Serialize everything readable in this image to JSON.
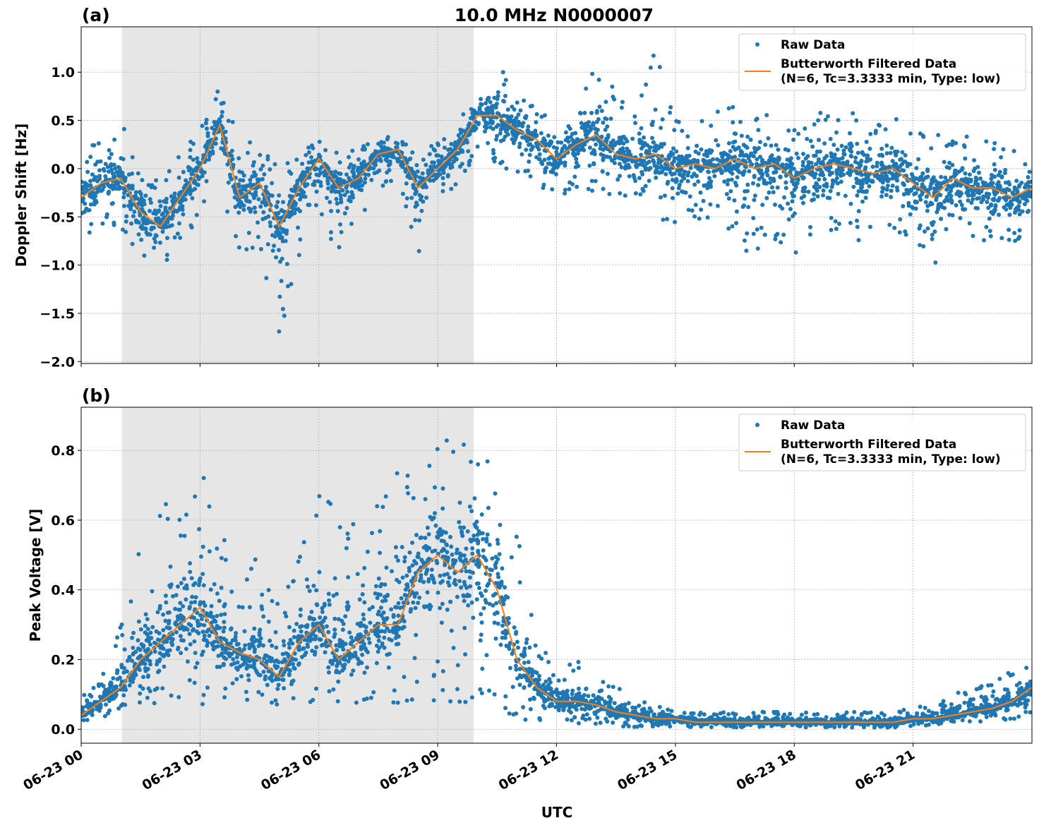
{
  "figure_title": "10.0 MHz N0000007",
  "xlabel": "UTC",
  "x_tick_labels": [
    "06-23 00",
    "06-23 03",
    "06-23 06",
    "06-23 09",
    "06-23 12",
    "06-23 15",
    "06-23 18",
    "06-23 21"
  ],
  "x_ticks_hours": [
    0,
    3,
    6,
    9,
    12,
    15,
    18,
    21
  ],
  "xlim_hours": [
    0,
    24
  ],
  "shaded_interval_hours": [
    1.03,
    9.91
  ],
  "colors": {
    "raw": "#1f77b4",
    "filtered": "#ff7f0e",
    "shade": "#e6e6e6",
    "grid": "#b0b0b0"
  },
  "legend": {
    "raw": "Raw Data",
    "filtered_line1": "Butterworth Filtered Data",
    "filtered_line2": "(N=6, Tc=3.3333 min, Type: low)",
    "placement": "upper-right"
  },
  "chart_data": [
    {
      "panel_label": "(a)",
      "type": "scatter+line",
      "ylabel": "Doppler Shift [Hz]",
      "ylim": [
        -2.02,
        1.47
      ],
      "y_ticks": [
        -2.0,
        -1.5,
        -1.0,
        -0.5,
        0.0,
        0.5,
        1.0
      ],
      "y_tick_labels": [
        "−2.0",
        "−1.5",
        "−1.0",
        "−0.5",
        "0.0",
        "0.5",
        "1.0"
      ],
      "grid": true,
      "x_hours": [
        0,
        0.5,
        1,
        1.5,
        2,
        2.5,
        3,
        3.5,
        4,
        4.5,
        5,
        5.5,
        6,
        6.5,
        7,
        7.5,
        8,
        8.5,
        9,
        9.5,
        10,
        10.5,
        11,
        11.5,
        12,
        12.5,
        13,
        13.5,
        14,
        14.5,
        15,
        15.5,
        16,
        16.5,
        17,
        17.5,
        18,
        18.5,
        19,
        19.5,
        20,
        20.5,
        21,
        21.5,
        22,
        22.5,
        23,
        23.5,
        24
      ],
      "filtered": [
        -0.3,
        -0.15,
        -0.1,
        -0.45,
        -0.6,
        -0.3,
        0.0,
        0.45,
        -0.3,
        -0.15,
        -0.6,
        -0.2,
        0.1,
        -0.2,
        -0.1,
        0.15,
        0.2,
        -0.2,
        0.0,
        0.2,
        0.55,
        0.55,
        0.4,
        0.3,
        0.1,
        0.25,
        0.35,
        0.15,
        0.1,
        0.15,
        0.0,
        0.05,
        0.0,
        0.1,
        0.0,
        0.05,
        -0.1,
        0.0,
        0.05,
        0.0,
        -0.05,
        0.0,
        -0.15,
        -0.3,
        -0.1,
        -0.2,
        -0.2,
        -0.3,
        -0.2
      ],
      "raw_high": [
        0.2,
        0.3,
        0.5,
        0.0,
        -0.1,
        0.2,
        0.4,
        0.85,
        0.3,
        0.3,
        0.1,
        0.2,
        0.3,
        0.15,
        0.25,
        0.3,
        0.4,
        0.1,
        0.3,
        0.5,
        0.9,
        1.1,
        0.9,
        0.6,
        0.6,
        0.8,
        1.2,
        0.8,
        0.6,
        1.3,
        0.5,
        0.6,
        0.6,
        0.65,
        0.6,
        0.6,
        0.4,
        0.7,
        0.5,
        0.6,
        0.5,
        0.6,
        0.4,
        0.4,
        0.3,
        0.35,
        0.3,
        0.2,
        0.2
      ],
      "raw_low": [
        -0.8,
        -0.6,
        -0.6,
        -1.0,
        -1.1,
        -0.8,
        -0.5,
        -0.2,
        -0.9,
        -0.8,
        -1.8,
        -0.9,
        -0.6,
        -0.9,
        -0.6,
        -0.3,
        -0.2,
        -1.0,
        -0.3,
        -0.2,
        0.2,
        0.0,
        -0.1,
        -0.2,
        -0.3,
        -0.2,
        -0.3,
        -0.3,
        -0.4,
        -0.5,
        -0.6,
        -0.5,
        -0.6,
        -0.8,
        -0.9,
        -0.8,
        -1.0,
        -0.7,
        -0.7,
        -0.8,
        -0.6,
        -0.6,
        -0.9,
        -1.1,
        -0.8,
        -0.7,
        -0.8,
        -0.8,
        -0.6
      ]
    },
    {
      "panel_label": "(b)",
      "type": "scatter+line",
      "ylabel": "Peak Voltage [V]",
      "ylim": [
        -0.04,
        0.924
      ],
      "y_ticks": [
        0.0,
        0.2,
        0.4,
        0.6,
        0.8
      ],
      "y_tick_labels": [
        "0.0",
        "0.2",
        "0.4",
        "0.6",
        "0.8"
      ],
      "grid": true,
      "x_hours": [
        0,
        0.5,
        1,
        1.5,
        2,
        2.5,
        3,
        3.5,
        4,
        4.5,
        5,
        5.5,
        6,
        6.5,
        7,
        7.5,
        8,
        8.5,
        9,
        9.5,
        10,
        10.5,
        11,
        11.5,
        12,
        12.5,
        13,
        13.5,
        14,
        14.5,
        15,
        15.5,
        16,
        16.5,
        17,
        17.5,
        18,
        18.5,
        19,
        19.5,
        20,
        20.5,
        21,
        21.5,
        22,
        22.5,
        23,
        23.5,
        24
      ],
      "filtered": [
        0.04,
        0.08,
        0.12,
        0.2,
        0.25,
        0.3,
        0.35,
        0.25,
        0.22,
        0.2,
        0.15,
        0.25,
        0.3,
        0.2,
        0.25,
        0.3,
        0.3,
        0.45,
        0.5,
        0.45,
        0.5,
        0.4,
        0.2,
        0.12,
        0.08,
        0.08,
        0.07,
        0.05,
        0.04,
        0.03,
        0.03,
        0.02,
        0.02,
        0.02,
        0.02,
        0.02,
        0.02,
        0.02,
        0.02,
        0.02,
        0.02,
        0.02,
        0.03,
        0.03,
        0.04,
        0.05,
        0.06,
        0.08,
        0.12
      ],
      "raw_high": [
        0.1,
        0.15,
        0.3,
        0.6,
        0.7,
        0.6,
        0.75,
        0.6,
        0.35,
        0.6,
        0.35,
        0.5,
        0.75,
        0.6,
        0.6,
        0.7,
        0.75,
        0.85,
        0.85,
        0.87,
        0.85,
        0.8,
        0.6,
        0.25,
        0.2,
        0.2,
        0.15,
        0.12,
        0.1,
        0.08,
        0.05,
        0.05,
        0.05,
        0.05,
        0.05,
        0.05,
        0.05,
        0.05,
        0.05,
        0.05,
        0.05,
        0.05,
        0.07,
        0.07,
        0.1,
        0.12,
        0.15,
        0.18,
        0.2
      ],
      "raw_low": [
        0.02,
        0.03,
        0.05,
        0.07,
        0.07,
        0.07,
        0.07,
        0.07,
        0.07,
        0.07,
        0.07,
        0.07,
        0.07,
        0.07,
        0.07,
        0.07,
        0.07,
        0.07,
        0.07,
        0.07,
        0.05,
        0.04,
        0.03,
        0.02,
        0.02,
        0.015,
        0.01,
        0.01,
        0.005,
        0.005,
        0.005,
        0.005,
        0.005,
        0.005,
        0.005,
        0.005,
        0.005,
        0.005,
        0.005,
        0.005,
        0.005,
        0.005,
        0.01,
        0.01,
        0.02,
        0.02,
        0.02,
        0.03,
        0.03
      ]
    }
  ]
}
